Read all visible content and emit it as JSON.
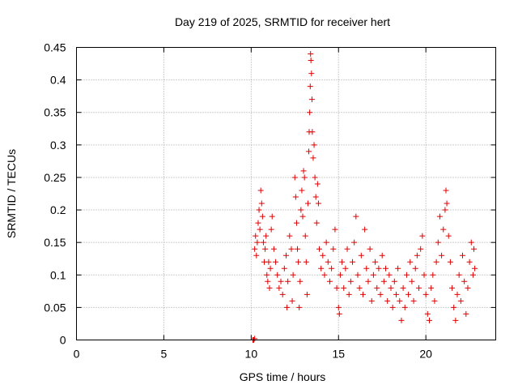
{
  "chart_data": {
    "type": "scatter",
    "title": "Day 219 of 2025, SRMTID for receiver hert",
    "xlabel": "GPS time / hours",
    "ylabel": "SRMTID / TECUs",
    "xlim": [
      0,
      24
    ],
    "ylim": [
      0,
      0.45
    ],
    "xticks": [
      0,
      5,
      10,
      15,
      20
    ],
    "xtick_labels": [
      "0",
      "5",
      "10",
      "15",
      "20"
    ],
    "yticks": [
      0,
      0.05,
      0.1,
      0.15,
      0.2,
      0.25,
      0.3,
      0.35,
      0.4,
      0.45
    ],
    "ytick_labels": [
      "0",
      "0.05",
      "0.1",
      "0.15",
      "0.2",
      "0.25",
      "0.3",
      "0.35",
      "0.4",
      "0.45"
    ],
    "grid": true,
    "marker": "plus",
    "color": "#e00000",
    "series": [
      {
        "name": "SRMTID",
        "points": [
          [
            10.1,
            0.0
          ],
          [
            10.15,
            0.0
          ],
          [
            10.2,
            0.002
          ],
          [
            10.2,
            0.14
          ],
          [
            10.25,
            0.16
          ],
          [
            10.3,
            0.13
          ],
          [
            10.35,
            0.15
          ],
          [
            10.4,
            0.18
          ],
          [
            10.45,
            0.2
          ],
          [
            10.5,
            0.17
          ],
          [
            10.55,
            0.23
          ],
          [
            10.6,
            0.21
          ],
          [
            10.65,
            0.19
          ],
          [
            10.7,
            0.15
          ],
          [
            10.75,
            0.12
          ],
          [
            10.8,
            0.14
          ],
          [
            10.85,
            0.16
          ],
          [
            10.9,
            0.1
          ],
          [
            10.95,
            0.09
          ],
          [
            11.0,
            0.12
          ],
          [
            11.05,
            0.08
          ],
          [
            11.1,
            0.11
          ],
          [
            11.15,
            0.17
          ],
          [
            11.2,
            0.19
          ],
          [
            11.3,
            0.14
          ],
          [
            11.4,
            0.12
          ],
          [
            11.5,
            0.1
          ],
          [
            11.6,
            0.08
          ],
          [
            11.7,
            0.09
          ],
          [
            11.8,
            0.07
          ],
          [
            11.9,
            0.11
          ],
          [
            12.0,
            0.13
          ],
          [
            12.05,
            0.05
          ],
          [
            12.1,
            0.09
          ],
          [
            12.2,
            0.16
          ],
          [
            12.3,
            0.14
          ],
          [
            12.35,
            0.06
          ],
          [
            12.4,
            0.1
          ],
          [
            12.5,
            0.25
          ],
          [
            12.55,
            0.22
          ],
          [
            12.6,
            0.18
          ],
          [
            12.65,
            0.14
          ],
          [
            12.7,
            0.12
          ],
          [
            12.75,
            0.05
          ],
          [
            12.8,
            0.09
          ],
          [
            12.85,
            0.2
          ],
          [
            12.9,
            0.23
          ],
          [
            12.95,
            0.19
          ],
          [
            13.0,
            0.26
          ],
          [
            13.05,
            0.25
          ],
          [
            13.1,
            0.16
          ],
          [
            13.15,
            0.12
          ],
          [
            13.2,
            0.07
          ],
          [
            13.25,
            0.21
          ],
          [
            13.3,
            0.29
          ],
          [
            13.32,
            0.32
          ],
          [
            13.35,
            0.35
          ],
          [
            13.38,
            0.39
          ],
          [
            13.4,
            0.44
          ],
          [
            13.42,
            0.43
          ],
          [
            13.45,
            0.41
          ],
          [
            13.48,
            0.37
          ],
          [
            13.5,
            0.32
          ],
          [
            13.55,
            0.28
          ],
          [
            13.6,
            0.3
          ],
          [
            13.65,
            0.25
          ],
          [
            13.7,
            0.22
          ],
          [
            13.75,
            0.18
          ],
          [
            13.8,
            0.24
          ],
          [
            13.85,
            0.21
          ],
          [
            13.9,
            0.14
          ],
          [
            14.0,
            0.11
          ],
          [
            14.1,
            0.13
          ],
          [
            14.2,
            0.1
          ],
          [
            14.3,
            0.15
          ],
          [
            14.4,
            0.12
          ],
          [
            14.5,
            0.09
          ],
          [
            14.6,
            0.11
          ],
          [
            14.7,
            0.14
          ],
          [
            14.8,
            0.17
          ],
          [
            14.9,
            0.08
          ],
          [
            15.0,
            0.05
          ],
          [
            15.05,
            0.04
          ],
          [
            15.1,
            0.1
          ],
          [
            15.2,
            0.12
          ],
          [
            15.3,
            0.08
          ],
          [
            15.4,
            0.11
          ],
          [
            15.5,
            0.14
          ],
          [
            15.6,
            0.07
          ],
          [
            15.7,
            0.09
          ],
          [
            15.8,
            0.12
          ],
          [
            15.9,
            0.15
          ],
          [
            16.0,
            0.19
          ],
          [
            16.1,
            0.1
          ],
          [
            16.2,
            0.08
          ],
          [
            16.3,
            0.13
          ],
          [
            16.4,
            0.07
          ],
          [
            16.5,
            0.17
          ],
          [
            16.6,
            0.11
          ],
          [
            16.7,
            0.09
          ],
          [
            16.8,
            0.14
          ],
          [
            16.9,
            0.06
          ],
          [
            17.0,
            0.1
          ],
          [
            17.1,
            0.12
          ],
          [
            17.2,
            0.08
          ],
          [
            17.3,
            0.11
          ],
          [
            17.4,
            0.07
          ],
          [
            17.5,
            0.13
          ],
          [
            17.6,
            0.09
          ],
          [
            17.7,
            0.11
          ],
          [
            17.8,
            0.06
          ],
          [
            17.9,
            0.1
          ],
          [
            18.0,
            0.08
          ],
          [
            18.1,
            0.05
          ],
          [
            18.2,
            0.09
          ],
          [
            18.3,
            0.07
          ],
          [
            18.4,
            0.11
          ],
          [
            18.5,
            0.06
          ],
          [
            18.6,
            0.03
          ],
          [
            18.7,
            0.08
          ],
          [
            18.8,
            0.05
          ],
          [
            18.9,
            0.1
          ],
          [
            19.0,
            0.07
          ],
          [
            19.1,
            0.12
          ],
          [
            19.2,
            0.09
          ],
          [
            19.3,
            0.06
          ],
          [
            19.4,
            0.11
          ],
          [
            19.5,
            0.13
          ],
          [
            19.6,
            0.08
          ],
          [
            19.7,
            0.14
          ],
          [
            19.8,
            0.16
          ],
          [
            19.9,
            0.1
          ],
          [
            20.0,
            0.07
          ],
          [
            20.1,
            0.04
          ],
          [
            20.2,
            0.03
          ],
          [
            20.3,
            0.08
          ],
          [
            20.4,
            0.1
          ],
          [
            20.5,
            0.06
          ],
          [
            20.6,
            0.12
          ],
          [
            20.7,
            0.15
          ],
          [
            20.8,
            0.19
          ],
          [
            20.9,
            0.13
          ],
          [
            21.0,
            0.17
          ],
          [
            21.1,
            0.2
          ],
          [
            21.15,
            0.23
          ],
          [
            21.2,
            0.21
          ],
          [
            21.3,
            0.16
          ],
          [
            21.4,
            0.12
          ],
          [
            21.5,
            0.08
          ],
          [
            21.6,
            0.05
          ],
          [
            21.7,
            0.03
          ],
          [
            21.8,
            0.07
          ],
          [
            21.9,
            0.1
          ],
          [
            22.0,
            0.06
          ],
          [
            22.1,
            0.13
          ],
          [
            22.2,
            0.09
          ],
          [
            22.3,
            0.04
          ],
          [
            22.4,
            0.08
          ],
          [
            22.5,
            0.12
          ],
          [
            22.6,
            0.15
          ],
          [
            22.7,
            0.1
          ],
          [
            22.75,
            0.14
          ],
          [
            22.8,
            0.11
          ]
        ]
      }
    ]
  }
}
